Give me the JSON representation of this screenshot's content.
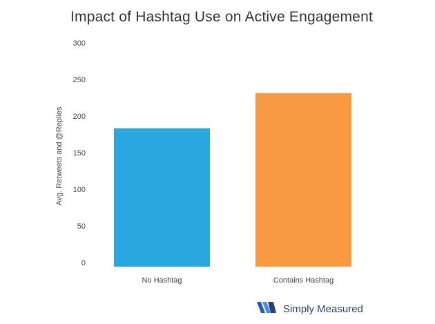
{
  "chart_data": {
    "type": "bar",
    "title": "Impact of Hashtag Use on Active Engagement",
    "xlabel": "",
    "ylabel": "Avg. Retweets and @Replies",
    "categories": [
      "No Hashtag",
      "Contains Hashtag"
    ],
    "values": [
      189,
      237
    ],
    "colors": [
      "#29a8e0",
      "#f79a42"
    ],
    "ylim": [
      0,
      300
    ],
    "yticks": [
      0,
      50,
      100,
      150,
      200,
      250,
      300
    ],
    "grid": false,
    "legend": "none"
  },
  "brand": {
    "name": "Simply Measured",
    "logo_icon": "simply-measured-logo-icon"
  }
}
